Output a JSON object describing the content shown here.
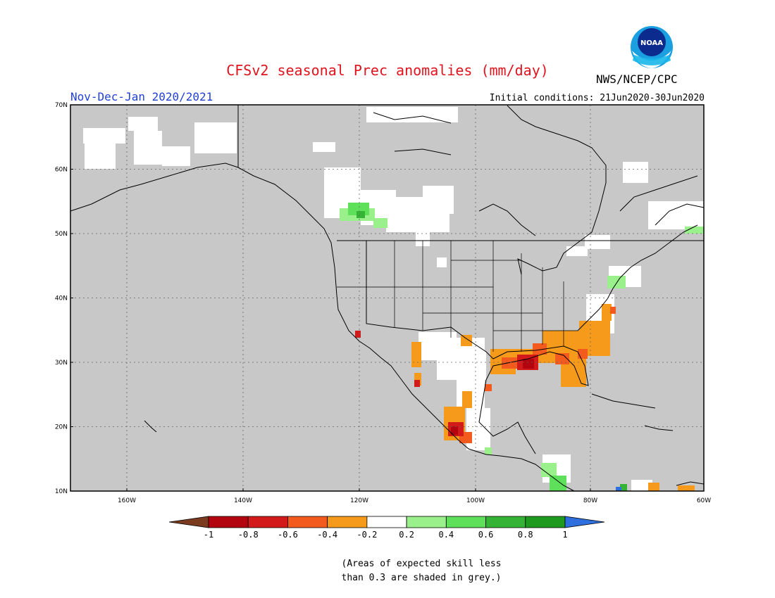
{
  "title": "CFSv2 seasonal Prec anomalies (mm/day)",
  "season": "Nov-Dec-Jan 2020/2021",
  "initial_conditions": "Initial conditions: 21Jun2020-30Jun2020",
  "agency": "NWS/NCEP/CPC",
  "logo_text": "NOAA",
  "lat_ticks": [
    "70N",
    "60N",
    "50N",
    "40N",
    "30N",
    "20N",
    "10N"
  ],
  "lon_ticks": [
    "160W",
    "140W",
    "120W",
    "100W",
    "80W",
    "60W"
  ],
  "colorbar": {
    "labels": [
      "-1",
      "-0.8",
      "-0.6",
      "-0.4",
      "-0.2",
      "0.2",
      "0.4",
      "0.6",
      "0.8",
      "1"
    ],
    "colors": [
      "#7a3b1e",
      "#b3050f",
      "#d31a1a",
      "#f25a1e",
      "#f59a1a",
      "#ffffff",
      "#9af08a",
      "#5fe05a",
      "#34b334",
      "#1e9a1e",
      "#2e6fdd"
    ]
  },
  "colors": {
    "land_grey": "#c8c8c8",
    "neutral_white": "#ffffff",
    "title_red": "#e0141e",
    "subtitle_blue": "#1f3fd6"
  },
  "note_line1": "(Areas of expected skill less",
  "note_line2": "than 0.3 are shaded in grey.)"
}
